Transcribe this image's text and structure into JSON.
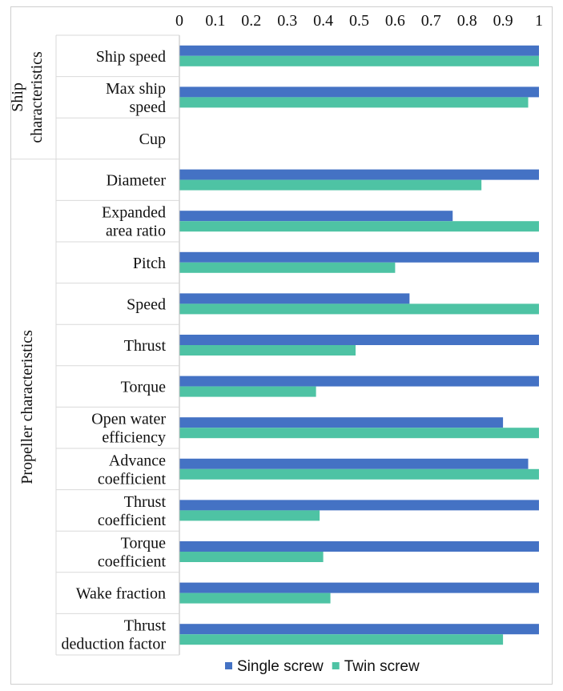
{
  "chart_data": {
    "type": "bar",
    "orientation": "horizontal",
    "categories": [
      [
        "Ship speed"
      ],
      [
        "Max ship",
        "speed"
      ],
      [
        "Cup"
      ],
      [
        "Diameter"
      ],
      [
        "Expanded",
        "area ratio"
      ],
      [
        "Pitch"
      ],
      [
        "Speed"
      ],
      [
        "Thrust"
      ],
      [
        "Torque"
      ],
      [
        "Open water",
        "efficiency"
      ],
      [
        "Advance",
        "coefficient"
      ],
      [
        "Thrust",
        "coefficient"
      ],
      [
        "Torque",
        "coefficient"
      ],
      [
        "Wake fraction"
      ],
      [
        "Thrust",
        "deduction factor"
      ]
    ],
    "groups": [
      {
        "label": [
          "Ship",
          "characteristics"
        ],
        "start": 0,
        "end": 2
      },
      {
        "label": [
          "Propeller characteristics"
        ],
        "start": 3,
        "end": 14
      }
    ],
    "series": [
      {
        "name": "Single screw",
        "color": "#4472C4",
        "values": [
          1,
          1,
          null,
          1,
          0.76,
          1,
          0.64,
          1,
          1,
          0.9,
          0.97,
          1,
          1,
          1,
          1
        ]
      },
      {
        "name": "Twin screw",
        "color": "#4EC3A4",
        "values": [
          1,
          0.97,
          null,
          0.84,
          1,
          0.6,
          1,
          0.49,
          0.38,
          1,
          1,
          0.39,
          0.4,
          0.42,
          0.9
        ]
      }
    ],
    "xlim": [
      0,
      1
    ],
    "xticks": [
      "0",
      "0.1",
      "0.2",
      "0.3",
      "0.4",
      "0.5",
      "0.6",
      "0.7",
      "0.8",
      "0.9",
      "1"
    ],
    "xtick_values": [
      0,
      0.1,
      0.2,
      0.3,
      0.4,
      0.5,
      0.6,
      0.7,
      0.8,
      0.9,
      1
    ],
    "grid": false,
    "legend": "bottom",
    "title": "",
    "xlabel": "",
    "ylabel": ""
  }
}
